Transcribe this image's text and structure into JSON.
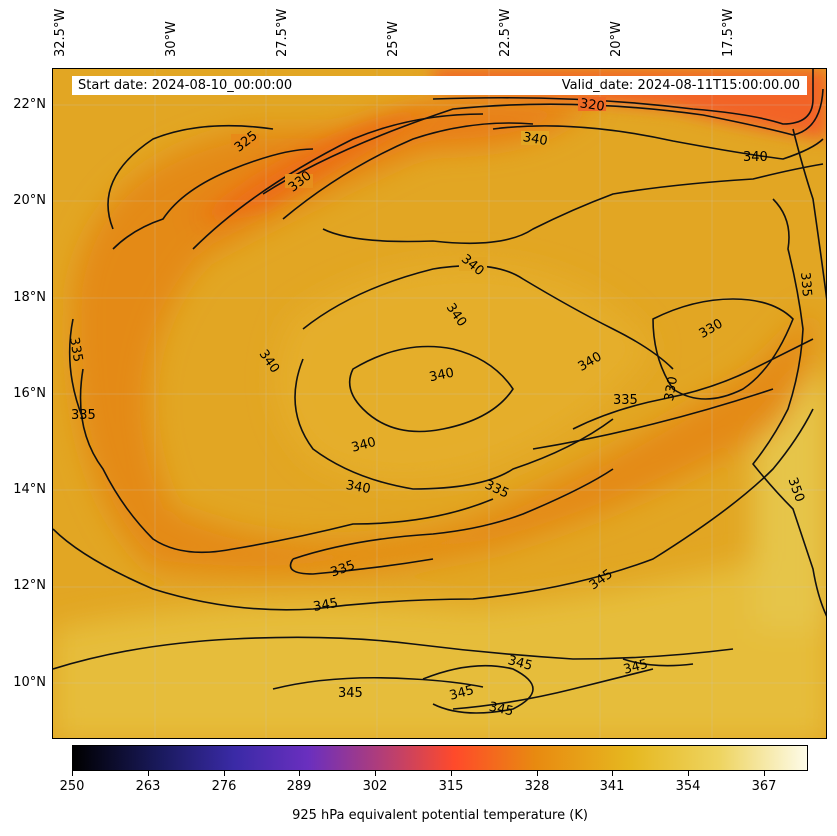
{
  "header": {
    "start_date": "Start date: 2024-08-10_00:00:00",
    "valid_date": "Valid_date: 2024-08-11T15:00:00.00"
  },
  "longitude_labels": [
    "32.5°W",
    "30°W",
    "27.5°W",
    "25°W",
    "22.5°W",
    "20°W",
    "17.5°W"
  ],
  "latitude_labels": [
    "22°N",
    "20°N",
    "18°N",
    "16°N",
    "14°N",
    "12°N",
    "10°N"
  ],
  "contour_labels": [
    "320",
    "325",
    "330",
    "335",
    "340",
    "345",
    "350"
  ],
  "colorbar": {
    "label": "925 hPa equivalent potential temperature (K)",
    "ticks": [
      "250",
      "263",
      "276",
      "289",
      "302",
      "315",
      "328",
      "341",
      "354",
      "367"
    ],
    "colormap": "CMRmap",
    "colors": [
      "#000000",
      "#1a1a5e",
      "#3a2aa6",
      "#6a2fbf",
      "#c0406a",
      "#ff4a2a",
      "#e88a10",
      "#e6b820",
      "#eed460",
      "#fdfbe8"
    ]
  },
  "map_colors": {
    "background": "#e2a623",
    "warm_band": "#e6bd3a",
    "cool_core": "#e48a18",
    "cold_max": "#f26428"
  }
}
